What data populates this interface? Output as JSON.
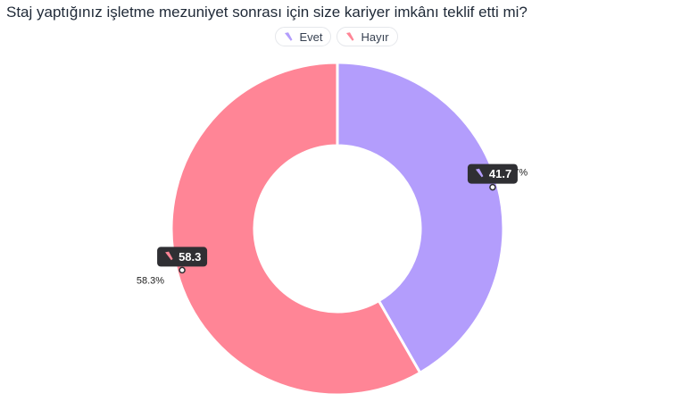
{
  "chart_data": {
    "type": "pie",
    "title": "Staj yaptığınız işletme mezuniyet sonrası için size kariyer imkânı teklif etti mi?",
    "legend_position": "top-center",
    "slices": [
      {
        "name": "Evet",
        "value": 41.7,
        "label": "41.7%",
        "tooltip": "41.7",
        "color": "#b39dfc"
      },
      {
        "name": "Hayır",
        "value": 58.3,
        "label": "58.3%",
        "tooltip": "58.3",
        "color": "#ff8596"
      }
    ]
  }
}
